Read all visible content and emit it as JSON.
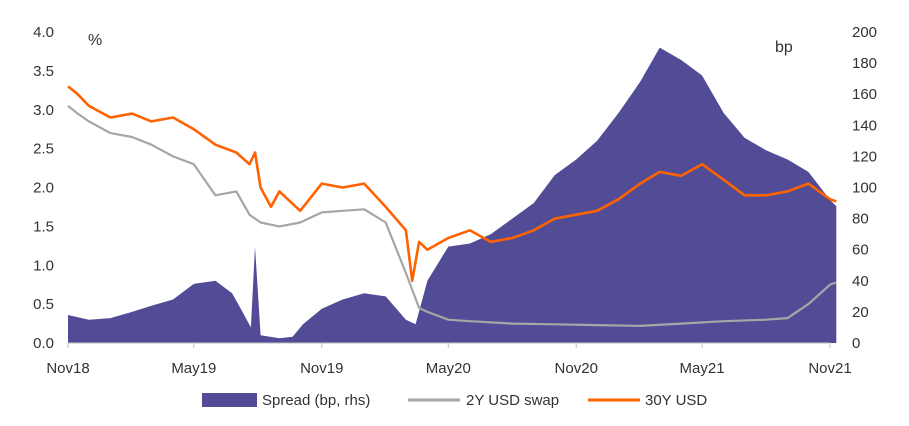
{
  "chart_data": {
    "type": "area+line",
    "units": {
      "left": "%",
      "right": "bp"
    },
    "left_axis": {
      "ylim": [
        0,
        4
      ],
      "ticks": [
        "0.0",
        "0.5",
        "1.0",
        "1.5",
        "2.0",
        "2.5",
        "3.0",
        "3.5",
        "4.0"
      ]
    },
    "right_axis": {
      "ylim": [
        0,
        200
      ],
      "ticks": [
        "0",
        "20",
        "40",
        "60",
        "80",
        "100",
        "120",
        "140",
        "160",
        "180",
        "200"
      ]
    },
    "x_axis": {
      "range": [
        "2018-11",
        "2021-11"
      ],
      "ticks": [
        {
          "date": "2018-11",
          "label": "Nov18"
        },
        {
          "date": "2019-05",
          "label": "May19"
        },
        {
          "date": "2019-11",
          "label": "Nov19"
        },
        {
          "date": "2020-05",
          "label": "May20"
        },
        {
          "date": "2020-11",
          "label": "Nov20"
        },
        {
          "date": "2021-05",
          "label": "May21"
        },
        {
          "date": "2021-11",
          "label": "Nov21"
        }
      ]
    },
    "legend": {
      "placement": "bottom"
    },
    "series": [
      {
        "name": "Spread (bp, rhs)",
        "type": "area",
        "axis": "right",
        "color": "#524c96",
        "points": [
          [
            "2018-11-01",
            18
          ],
          [
            "2018-12-01",
            15
          ],
          [
            "2019-01-01",
            16
          ],
          [
            "2019-02-01",
            20
          ],
          [
            "2019-03-01",
            24
          ],
          [
            "2019-04-01",
            28
          ],
          [
            "2019-05-01",
            38
          ],
          [
            "2019-06-01",
            40
          ],
          [
            "2019-06-25",
            32
          ],
          [
            "2019-07-10",
            20
          ],
          [
            "2019-07-22",
            10
          ],
          [
            "2019-07-28",
            62
          ],
          [
            "2019-08-05",
            5
          ],
          [
            "2019-09-01",
            3
          ],
          [
            "2019-09-20",
            4
          ],
          [
            "2019-10-05",
            12
          ],
          [
            "2019-11-01",
            22
          ],
          [
            "2019-12-01",
            28
          ],
          [
            "2020-01-01",
            32
          ],
          [
            "2020-02-01",
            30
          ],
          [
            "2020-03-01",
            15
          ],
          [
            "2020-03-15",
            12
          ],
          [
            "2020-04-01",
            40
          ],
          [
            "2020-05-01",
            62
          ],
          [
            "2020-06-01",
            64
          ],
          [
            "2020-07-01",
            70
          ],
          [
            "2020-08-01",
            80
          ],
          [
            "2020-09-01",
            90
          ],
          [
            "2020-10-01",
            108
          ],
          [
            "2020-11-01",
            118
          ],
          [
            "2020-12-01",
            130
          ],
          [
            "2021-01-01",
            148
          ],
          [
            "2021-02-01",
            168
          ],
          [
            "2021-03-01",
            190
          ],
          [
            "2021-04-01",
            182
          ],
          [
            "2021-05-01",
            172
          ],
          [
            "2021-06-01",
            148
          ],
          [
            "2021-07-01",
            132
          ],
          [
            "2021-08-01",
            124
          ],
          [
            "2021-09-01",
            118
          ],
          [
            "2021-10-01",
            110
          ],
          [
            "2021-11-01",
            92
          ],
          [
            "2021-11-10",
            88
          ]
        ]
      },
      {
        "name": "2Y USD swap",
        "type": "line",
        "axis": "left",
        "color": "#a6a6a6",
        "points": [
          [
            "2018-11-01",
            3.05
          ],
          [
            "2018-11-15",
            2.95
          ],
          [
            "2018-12-01",
            2.85
          ],
          [
            "2019-01-01",
            2.7
          ],
          [
            "2019-02-01",
            2.65
          ],
          [
            "2019-03-01",
            2.55
          ],
          [
            "2019-04-01",
            2.4
          ],
          [
            "2019-05-01",
            2.3
          ],
          [
            "2019-06-01",
            1.9
          ],
          [
            "2019-07-01",
            1.95
          ],
          [
            "2019-07-20",
            1.65
          ],
          [
            "2019-08-05",
            1.55
          ],
          [
            "2019-09-01",
            1.5
          ],
          [
            "2019-10-01",
            1.55
          ],
          [
            "2019-11-01",
            1.68
          ],
          [
            "2019-12-01",
            1.7
          ],
          [
            "2020-01-01",
            1.72
          ],
          [
            "2020-02-01",
            1.55
          ],
          [
            "2020-03-01",
            0.9
          ],
          [
            "2020-03-20",
            0.45
          ],
          [
            "2020-04-01",
            0.4
          ],
          [
            "2020-05-01",
            0.3
          ],
          [
            "2020-06-01",
            0.28
          ],
          [
            "2020-08-01",
            0.25
          ],
          [
            "2020-10-01",
            0.24
          ],
          [
            "2020-12-01",
            0.23
          ],
          [
            "2021-02-01",
            0.22
          ],
          [
            "2021-04-01",
            0.25
          ],
          [
            "2021-06-01",
            0.28
          ],
          [
            "2021-08-01",
            0.3
          ],
          [
            "2021-09-01",
            0.32
          ],
          [
            "2021-10-01",
            0.5
          ],
          [
            "2021-11-01",
            0.75
          ],
          [
            "2021-11-10",
            0.78
          ]
        ]
      },
      {
        "name": "30Y USD",
        "type": "line",
        "axis": "left",
        "color": "#ff6200",
        "points": [
          [
            "2018-11-01",
            3.3
          ],
          [
            "2018-11-15",
            3.2
          ],
          [
            "2018-12-01",
            3.05
          ],
          [
            "2019-01-01",
            2.9
          ],
          [
            "2019-02-01",
            2.95
          ],
          [
            "2019-03-01",
            2.85
          ],
          [
            "2019-04-01",
            2.9
          ],
          [
            "2019-05-01",
            2.75
          ],
          [
            "2019-06-01",
            2.55
          ],
          [
            "2019-07-01",
            2.45
          ],
          [
            "2019-07-20",
            2.3
          ],
          [
            "2019-07-28",
            2.45
          ],
          [
            "2019-08-05",
            2.0
          ],
          [
            "2019-08-20",
            1.75
          ],
          [
            "2019-09-01",
            1.95
          ],
          [
            "2019-10-01",
            1.7
          ],
          [
            "2019-11-01",
            2.05
          ],
          [
            "2019-12-01",
            2.0
          ],
          [
            "2020-01-01",
            2.05
          ],
          [
            "2020-02-01",
            1.75
          ],
          [
            "2020-03-01",
            1.45
          ],
          [
            "2020-03-10",
            0.8
          ],
          [
            "2020-03-20",
            1.3
          ],
          [
            "2020-04-01",
            1.2
          ],
          [
            "2020-05-01",
            1.35
          ],
          [
            "2020-06-01",
            1.45
          ],
          [
            "2020-07-01",
            1.3
          ],
          [
            "2020-08-01",
            1.35
          ],
          [
            "2020-09-01",
            1.45
          ],
          [
            "2020-10-01",
            1.6
          ],
          [
            "2020-11-01",
            1.65
          ],
          [
            "2020-12-01",
            1.7
          ],
          [
            "2021-01-01",
            1.85
          ],
          [
            "2021-02-01",
            2.05
          ],
          [
            "2021-03-01",
            2.2
          ],
          [
            "2021-04-01",
            2.15
          ],
          [
            "2021-05-01",
            2.3
          ],
          [
            "2021-06-01",
            2.1
          ],
          [
            "2021-07-01",
            1.9
          ],
          [
            "2021-08-01",
            1.9
          ],
          [
            "2021-09-01",
            1.95
          ],
          [
            "2021-10-01",
            2.05
          ],
          [
            "2021-11-01",
            1.85
          ],
          [
            "2021-11-10",
            1.82
          ]
        ]
      }
    ]
  }
}
